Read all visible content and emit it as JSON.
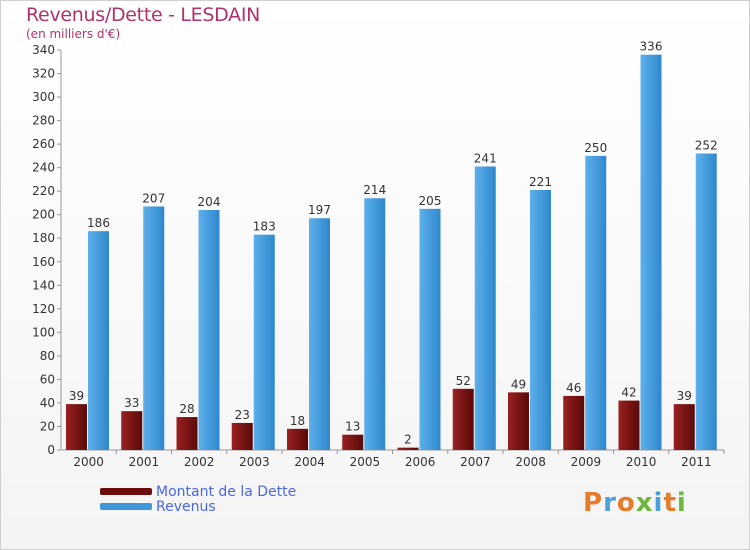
{
  "title": "Revenus/Dette - LESDAIN",
  "subtitle": "(en milliers d'€)",
  "colors": {
    "title": "#b0336b",
    "dette": "#8b1a1a",
    "revenus": "#4ea3e0",
    "legend_text": "#4a67e0"
  },
  "legend": [
    {
      "label": "Montant de la Dette",
      "color": "#6b0d0d"
    },
    {
      "label": "Revenus",
      "color": "#3f97dc"
    }
  ],
  "logo": {
    "letters": [
      "P",
      "r",
      "o",
      "x",
      "i",
      "t",
      "i"
    ],
    "colors": [
      "#e47c2c",
      "#4aa0d8",
      "#e47c2c",
      "#6cb83a",
      "#4aa0d8",
      "#e47c2c",
      "#6cb83a"
    ]
  },
  "chart_data": {
    "type": "bar",
    "title": "Revenus/Dette - LESDAIN",
    "ylabel": "(en milliers d'€)",
    "categories": [
      "2000",
      "2001",
      "2002",
      "2003",
      "2004",
      "2005",
      "2006",
      "2007",
      "2008",
      "2009",
      "2010",
      "2011"
    ],
    "series": [
      {
        "name": "Montant de la Dette",
        "values": [
          39,
          33,
          28,
          23,
          18,
          13,
          2,
          52,
          49,
          46,
          42,
          39
        ]
      },
      {
        "name": "Revenus",
        "values": [
          186,
          207,
          204,
          183,
          197,
          214,
          205,
          241,
          221,
          250,
          336,
          252
        ]
      }
    ],
    "ylim": [
      0,
      340
    ],
    "yticks": [
      0,
      20,
      40,
      60,
      80,
      100,
      120,
      140,
      160,
      180,
      200,
      220,
      240,
      260,
      280,
      300,
      320,
      340
    ],
    "grid": false,
    "legend_position": "bottom-left"
  }
}
